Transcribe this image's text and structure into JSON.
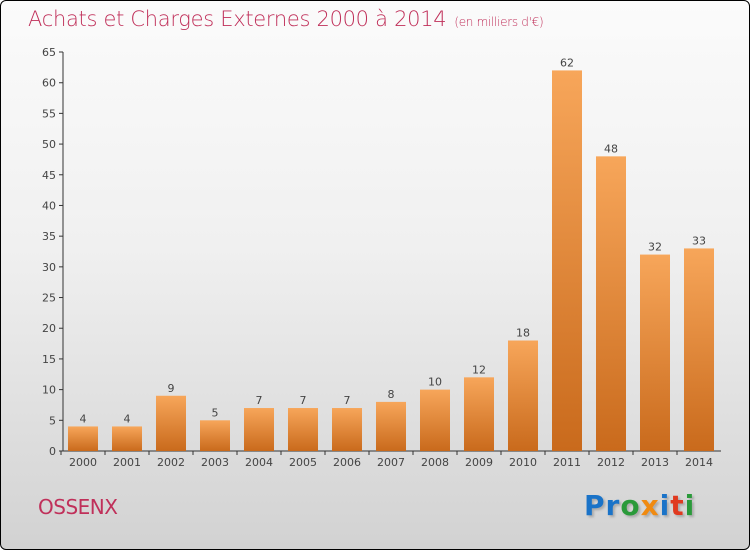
{
  "chart_data": {
    "type": "bar",
    "title": "Achats et Charges Externes 2000 à 2014",
    "subtitle": "(en milliers d'€)",
    "categories": [
      "2000",
      "2001",
      "2002",
      "2003",
      "2004",
      "2005",
      "2006",
      "2007",
      "2008",
      "2009",
      "2010",
      "2011",
      "2012",
      "2013",
      "2014"
    ],
    "values": [
      4,
      4,
      9,
      5,
      7,
      7,
      7,
      8,
      10,
      12,
      18,
      62,
      48,
      32,
      33
    ],
    "ylim": [
      0,
      65
    ],
    "yticks": [
      0,
      5,
      10,
      15,
      20,
      25,
      30,
      35,
      40,
      45,
      50,
      55,
      60,
      65
    ],
    "xlabel": "",
    "ylabel": "",
    "bar_color": "#f0913a",
    "grid": false
  },
  "footer": {
    "city": "OSSENX",
    "logo": "Proxiti"
  },
  "logo_colors": [
    "#1a73c8",
    "#1a73c8",
    "#2a9a3a",
    "#f08a10",
    "#1a73c8",
    "#e03a20",
    "#2a9a3a"
  ]
}
